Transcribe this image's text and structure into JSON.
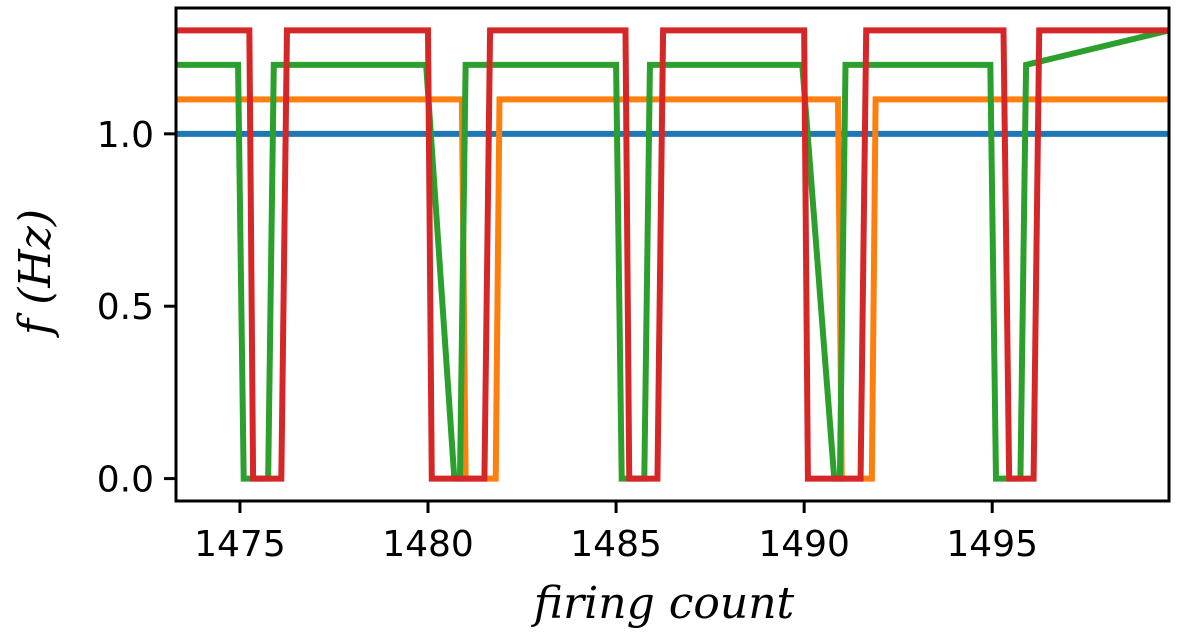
{
  "chart_data": {
    "type": "line",
    "title": "",
    "xlabel": "firing count",
    "ylabel": "f (Hz)",
    "xlim": [
      1473.3,
      1499.7
    ],
    "ylim": [
      -0.065,
      1.365
    ],
    "xticks": [
      1475,
      1480,
      1485,
      1490,
      1495
    ],
    "xtick_labels": [
      "1475",
      "1480",
      "1485",
      "1490",
      "1495"
    ],
    "yticks": [
      0.0,
      0.5,
      1.0
    ],
    "ytick_labels": [
      "0.0",
      "0.5",
      "1.0"
    ],
    "grid": false,
    "legend": "none",
    "series": [
      {
        "color": "#1f77b4",
        "x": [
          1473.3,
          1499.7
        ],
        "y": [
          1.0,
          1.0
        ]
      },
      {
        "color": "#ff7f0e",
        "x": [
          1473.3,
          1480.9,
          1481.0,
          1481.8,
          1481.9,
          1490.9,
          1491.0,
          1491.8,
          1491.9,
          1499.7
        ],
        "y": [
          1.1,
          1.1,
          0.0,
          0.0,
          1.1,
          1.1,
          0.0,
          0.0,
          1.1,
          1.1
        ]
      },
      {
        "color": "#2ca02c",
        "x": [
          1473.3,
          1474.95,
          1475.1,
          1475.75,
          1475.9,
          1479.95,
          1480.7,
          1480.85,
          1481.0,
          1485.0,
          1485.15,
          1485.75,
          1485.9,
          1489.95,
          1490.8,
          1490.95,
          1491.1,
          1494.95,
          1495.1,
          1495.75,
          1495.9,
          1499.7
        ],
        "y": [
          1.2,
          1.2,
          0.0,
          0.0,
          1.2,
          1.2,
          0.0,
          0.0,
          1.2,
          1.2,
          0.0,
          0.0,
          1.2,
          1.2,
          0.0,
          0.0,
          1.2,
          1.2,
          0.0,
          0.0,
          1.2,
          1.3
        ]
      },
      {
        "color": "#d62728",
        "x": [
          1473.3,
          1475.25,
          1475.35,
          1476.1,
          1476.25,
          1480.0,
          1480.1,
          1481.5,
          1481.65,
          1485.25,
          1485.35,
          1486.1,
          1486.25,
          1490.0,
          1490.1,
          1491.5,
          1491.65,
          1495.3,
          1495.45,
          1496.1,
          1496.25,
          1499.7
        ],
        "y": [
          1.3,
          1.3,
          0.0,
          0.0,
          1.3,
          1.3,
          0.0,
          0.0,
          1.3,
          1.3,
          0.0,
          0.0,
          1.3,
          1.3,
          0.0,
          0.0,
          1.3,
          1.3,
          0.0,
          0.0,
          1.3,
          1.3
        ]
      }
    ]
  }
}
